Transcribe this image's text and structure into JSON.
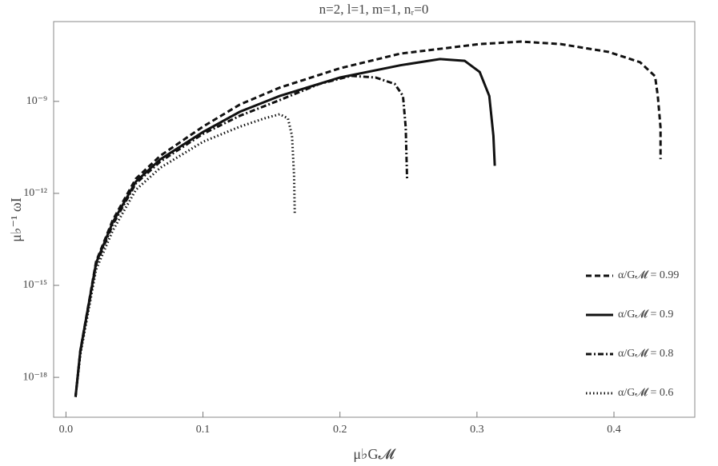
{
  "chart_data": {
    "type": "line",
    "title": "n=2, l=1, m=1, nᵣ=0",
    "x_label": "μ♭G𝓜",
    "y_label": "μ♭⁻¹ ωI",
    "log_y": true,
    "grid": false,
    "legend": "lower right",
    "xlim": [
      -0.009,
      0.459
    ],
    "ylim": [
      5e-20,
      4e-07
    ],
    "xticks": [
      {
        "value": 0,
        "label": "0.0"
      },
      0.1,
      0.2,
      0.3,
      0.4
    ],
    "yticks": [
      {
        "value": 1e-09,
        "label": "10⁻⁹"
      },
      {
        "value": 1e-12,
        "label": "10⁻¹²"
      },
      {
        "value": 1e-15,
        "label": "10⁻¹⁵"
      },
      {
        "value": 1e-18,
        "label": "10⁻¹⁸"
      }
    ],
    "series": [
      {
        "name": "α/G𝓜 = 0.99",
        "color": "#111111",
        "dash": "dashed",
        "x": [
          0.007,
          0.0105,
          0.022,
          0.034,
          0.051,
          0.069,
          0.1,
          0.127,
          0.156,
          0.2,
          0.244,
          0.302,
          0.332,
          0.361,
          0.396,
          0.419,
          0.43,
          0.432,
          0.434,
          0.434
        ],
        "values": [
          2.3e-19,
          7.4e-18,
          6e-15,
          1.3e-13,
          3e-12,
          1.7e-11,
          1.5e-10,
          7.9e-10,
          2.8e-09,
          1.2e-08,
          3.6e-08,
          7.4e-08,
          8.9e-08,
          7.4e-08,
          4.1e-08,
          1.9e-08,
          6.6e-09,
          1.5e-09,
          1.4e-10,
          1.3e-11
        ]
      },
      {
        "name": "α/G𝓜 = 0.9",
        "color": "#111111",
        "dash": "solid",
        "x": [
          0.007,
          0.0105,
          0.022,
          0.034,
          0.051,
          0.069,
          0.1,
          0.127,
          0.156,
          0.2,
          0.244,
          0.273,
          0.291,
          0.302,
          0.309,
          0.312,
          0.313
        ],
        "values": [
          2.3e-19,
          7.4e-18,
          5.4e-15,
          1.1e-13,
          2.4e-12,
          1.3e-11,
          1e-10,
          4.6e-10,
          1.5e-09,
          6e-09,
          1.5e-08,
          2.4e-08,
          2.1e-08,
          9.1e-09,
          1.5e-09,
          7.6e-11,
          7.9e-12
        ]
      },
      {
        "name": "α/G𝓜 = 0.8",
        "color": "#111111",
        "dash": "dashdot",
        "x": [
          0.007,
          0.0105,
          0.022,
          0.034,
          0.051,
          0.069,
          0.1,
          0.127,
          0.156,
          0.185,
          0.208,
          0.226,
          0.24,
          0.246,
          0.248,
          0.249
        ],
        "values": [
          2.3e-19,
          6.6e-18,
          4.8e-15,
          9.3e-14,
          2.1e-12,
          1.1e-11,
          8.7e-11,
          3.4e-10,
          1.1e-09,
          3.7e-09,
          6.8e-09,
          6e-09,
          3.7e-09,
          1.5e-09,
          1.4e-10,
          2.8e-12
        ]
      },
      {
        "name": "α/G𝓜 = 0.6",
        "color": "#111111",
        "dash": "dotted",
        "x": [
          0.007,
          0.0105,
          0.022,
          0.034,
          0.051,
          0.069,
          0.1,
          0.127,
          0.145,
          0.156,
          0.162,
          0.165,
          0.1665,
          0.167
        ],
        "values": [
          2.3e-19,
          5.5e-18,
          3.3e-15,
          5.9e-14,
          1.3e-12,
          6.9e-12,
          4.8e-11,
          1.5e-10,
          2.8e-10,
          3.8e-10,
          2.8e-10,
          7.6e-11,
          3.8e-12,
          2.3e-13
        ]
      }
    ]
  }
}
